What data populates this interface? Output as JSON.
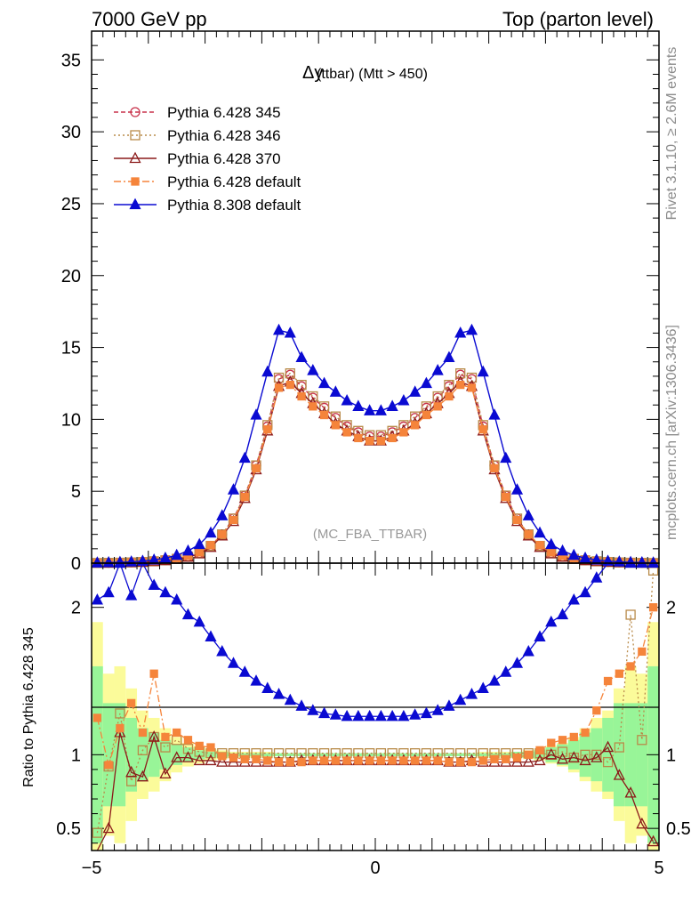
{
  "header": {
    "left": "7000 GeV pp",
    "right": "Top (parton level)"
  },
  "side": {
    "rivet": "Rivet 3.1.10, ≥ 2.6M events",
    "mcplots": "mcplots.cern.ch [arXiv:1306.3436]"
  },
  "colors": {
    "p345": "#c8324b",
    "p346": "#b98b4a",
    "p370": "#8b1a1a",
    "p6def": "#f5843b",
    "p8def": "#0a0ad2",
    "band_yellow": "#fbfb9a",
    "band_green": "#98f598"
  },
  "chart_data": [
    {
      "type": "line",
      "title": "Δy (ttbar) (Mtt > 450)",
      "title_main": "Δy",
      "title_sub": "(ttbar) (Mtt > 450)",
      "watermark": "(MC_FBA_TTBAR)",
      "xlim": [
        -5,
        5
      ],
      "ylim": [
        0,
        37
      ],
      "yticks": [
        0,
        5,
        10,
        15,
        20,
        25,
        30,
        35
      ],
      "xlabel": "",
      "ylabel": "",
      "legend_position": "top-left",
      "x": [
        -4.9,
        -4.7,
        -4.5,
        -4.3,
        -4.1,
        -3.9,
        -3.7,
        -3.5,
        -3.3,
        -3.1,
        -2.9,
        -2.7,
        -2.5,
        -2.3,
        -2.1,
        -1.9,
        -1.7,
        -1.5,
        -1.3,
        -1.1,
        -0.9,
        -0.7,
        -0.5,
        -0.3,
        -0.1,
        0.1,
        0.3,
        0.5,
        0.7,
        0.9,
        1.1,
        1.3,
        1.5,
        1.7,
        1.9,
        2.1,
        2.3,
        2.5,
        2.7,
        2.9,
        3.1,
        3.3,
        3.5,
        3.7,
        3.9,
        4.1,
        4.3,
        4.5,
        4.7,
        4.9
      ],
      "series": [
        {
          "name": "Pythia 6.428 345",
          "key": "p345",
          "marker": "circle-open",
          "dash": "5,3",
          "values": [
            0.01,
            0.02,
            0.03,
            0.05,
            0.08,
            0.13,
            0.2,
            0.3,
            0.45,
            0.7,
            1.2,
            2.0,
            3.1,
            4.7,
            6.8,
            9.5,
            12.8,
            13.1,
            12.3,
            11.5,
            10.8,
            10.1,
            9.5,
            9.1,
            8.8,
            8.8,
            9.1,
            9.5,
            10.1,
            10.8,
            11.5,
            12.3,
            13.1,
            12.8,
            9.5,
            6.8,
            4.7,
            3.1,
            2.0,
            1.2,
            0.7,
            0.45,
            0.3,
            0.2,
            0.13,
            0.08,
            0.05,
            0.03,
            0.02,
            0.01
          ]
        },
        {
          "name": "Pythia 6.428 346",
          "key": "p346",
          "marker": "square-open",
          "dash": "2,3",
          "values": [
            0.01,
            0.02,
            0.03,
            0.05,
            0.08,
            0.13,
            0.2,
            0.3,
            0.45,
            0.7,
            1.2,
            2.0,
            3.1,
            4.7,
            6.8,
            9.6,
            12.9,
            13.2,
            12.4,
            11.6,
            10.9,
            10.2,
            9.6,
            9.2,
            8.9,
            8.9,
            9.2,
            9.6,
            10.2,
            10.9,
            11.6,
            12.4,
            13.2,
            12.9,
            9.6,
            6.8,
            4.7,
            3.1,
            2.0,
            1.2,
            0.7,
            0.45,
            0.3,
            0.2,
            0.13,
            0.08,
            0.05,
            0.03,
            0.02,
            0.01
          ]
        },
        {
          "name": "Pythia 6.428 370",
          "key": "p370",
          "marker": "triangle-open",
          "dash": "",
          "values": [
            0.01,
            0.01,
            0.03,
            0.05,
            0.07,
            0.12,
            0.18,
            0.28,
            0.42,
            0.65,
            1.1,
            1.9,
            2.9,
            4.5,
            6.5,
            9.2,
            12.3,
            12.6,
            11.8,
            11.1,
            10.4,
            9.7,
            9.2,
            8.8,
            8.5,
            8.5,
            8.8,
            9.2,
            9.7,
            10.4,
            11.1,
            11.8,
            12.6,
            12.3,
            9.2,
            6.5,
            4.5,
            2.9,
            1.9,
            1.1,
            0.65,
            0.42,
            0.28,
            0.18,
            0.12,
            0.07,
            0.05,
            0.03,
            0.01,
            0.01
          ]
        },
        {
          "name": "Pythia 6.428 default",
          "key": "p6def",
          "marker": "square-filled",
          "dash": "8,3,2,3",
          "values": [
            0.01,
            0.02,
            0.04,
            0.06,
            0.1,
            0.15,
            0.23,
            0.34,
            0.5,
            0.75,
            1.25,
            2.0,
            3.0,
            4.6,
            6.6,
            9.3,
            12.2,
            12.4,
            11.6,
            10.9,
            10.3,
            9.6,
            9.1,
            8.7,
            8.5,
            8.5,
            8.7,
            9.1,
            9.6,
            10.3,
            10.9,
            11.6,
            12.4,
            12.2,
            9.3,
            6.6,
            4.6,
            3.0,
            2.0,
            1.25,
            0.75,
            0.5,
            0.34,
            0.23,
            0.15,
            0.1,
            0.06,
            0.04,
            0.02,
            0.01
          ]
        },
        {
          "name": "Pythia 8.308 default",
          "key": "p8def",
          "marker": "triangle-filled",
          "dash": "",
          "values": [
            0.02,
            0.04,
            0.06,
            0.09,
            0.14,
            0.22,
            0.35,
            0.55,
            0.85,
            1.3,
            2.1,
            3.3,
            5.1,
            7.3,
            10.3,
            13.3,
            16.2,
            16.0,
            14.3,
            13.4,
            12.5,
            11.9,
            11.3,
            10.9,
            10.6,
            10.6,
            10.9,
            11.3,
            11.9,
            12.5,
            13.4,
            14.3,
            16.0,
            16.2,
            13.3,
            10.3,
            7.3,
            5.1,
            3.3,
            2.1,
            1.3,
            0.85,
            0.55,
            0.35,
            0.22,
            0.14,
            0.09,
            0.06,
            0.04,
            0.02
          ]
        }
      ]
    },
    {
      "type": "line",
      "title": "",
      "xlim": [
        -5,
        5
      ],
      "xticks": [
        -5,
        0,
        5
      ],
      "ylim": [
        0.35,
        2.3
      ],
      "yticks": [
        0.5,
        1,
        2
      ],
      "ylabel": "Ratio to Pythia 6.428 345",
      "x": [
        -4.9,
        -4.7,
        -4.5,
        -4.3,
        -4.1,
        -3.9,
        -3.7,
        -3.5,
        -3.3,
        -3.1,
        -2.9,
        -2.7,
        -2.5,
        -2.3,
        -2.1,
        -1.9,
        -1.7,
        -1.5,
        -1.3,
        -1.1,
        -0.9,
        -0.7,
        -0.5,
        -0.3,
        -0.1,
        0.1,
        0.3,
        0.5,
        0.7,
        0.9,
        1.1,
        1.3,
        1.5,
        1.7,
        1.9,
        2.1,
        2.3,
        2.5,
        2.7,
        2.9,
        3.1,
        3.3,
        3.5,
        3.7,
        3.9,
        4.1,
        4.3,
        4.5,
        4.7,
        4.9
      ],
      "series": [
        {
          "name": "Pythia 6.428 346",
          "key": "p346",
          "marker": "square-open",
          "values": [
            0.47,
            0.92,
            1.28,
            0.82,
            1.03,
            1.12,
            1.05,
            1.1,
            1.04,
            1.02,
            1.01,
            1.01,
            1.01,
            1.01,
            1.01,
            1.01,
            1.01,
            1.01,
            1.01,
            1.01,
            1.01,
            1.01,
            1.01,
            1.01,
            1.01,
            1.01,
            1.01,
            1.01,
            1.01,
            1.01,
            1.01,
            1.01,
            1.01,
            1.01,
            1.01,
            1.01,
            1.01,
            1.01,
            1.01,
            1.01,
            1.0,
            1.02,
            0.98,
            1.0,
            1.0,
            0.95,
            1.05,
            1.95,
            1.1,
            2.25
          ]
        },
        {
          "name": "Pythia 6.428 370",
          "key": "p370",
          "marker": "triangle-open",
          "values": [
            0.33,
            0.5,
            1.15,
            0.88,
            0.85,
            1.12,
            0.87,
            0.98,
            0.98,
            0.96,
            0.96,
            0.95,
            0.95,
            0.95,
            0.95,
            0.95,
            0.95,
            0.95,
            0.96,
            0.96,
            0.96,
            0.96,
            0.96,
            0.96,
            0.96,
            0.96,
            0.96,
            0.96,
            0.96,
            0.96,
            0.96,
            0.95,
            0.95,
            0.96,
            0.95,
            0.95,
            0.95,
            0.95,
            0.95,
            0.96,
            1.0,
            0.97,
            0.98,
            0.96,
            0.98,
            1.05,
            0.86,
            0.74,
            0.53,
            0.41
          ]
        },
        {
          "name": "Pythia 6.428 default",
          "key": "p6def",
          "marker": "square-filled",
          "values": [
            1.25,
            0.93,
            1.18,
            1.35,
            1.15,
            1.55,
            1.12,
            1.15,
            1.1,
            1.06,
            1.05,
            0.99,
            0.98,
            0.97,
            0.97,
            0.96,
            0.95,
            0.95,
            0.95,
            0.96,
            0.96,
            0.96,
            0.96,
            0.96,
            0.96,
            0.96,
            0.96,
            0.96,
            0.96,
            0.96,
            0.96,
            0.95,
            0.95,
            0.95,
            0.96,
            0.97,
            0.97,
            0.98,
            1.0,
            1.03,
            1.08,
            1.1,
            1.12,
            1.15,
            1.3,
            1.5,
            1.55,
            1.6,
            1.7,
            2.0
          ]
        },
        {
          "name": "Pythia 8.308 default",
          "key": "p8def",
          "marker": "triangle-filled",
          "values": [
            2.05,
            2.1,
            2.3,
            2.08,
            2.35,
            2.15,
            2.1,
            2.05,
            1.95,
            1.9,
            1.8,
            1.7,
            1.62,
            1.56,
            1.5,
            1.45,
            1.41,
            1.37,
            1.33,
            1.3,
            1.28,
            1.27,
            1.26,
            1.26,
            1.26,
            1.26,
            1.26,
            1.26,
            1.27,
            1.28,
            1.3,
            1.33,
            1.37,
            1.41,
            1.45,
            1.5,
            1.56,
            1.62,
            1.7,
            1.8,
            1.9,
            1.95,
            2.05,
            2.1,
            2.2,
            2.4,
            2.4,
            2.3,
            2.3,
            2.3
          ]
        }
      ],
      "band_yellow_halfwidth": [
        0.9,
        0.55,
        0.6,
        0.45,
        0.3,
        0.25,
        0.18,
        0.12,
        0.08,
        0.06,
        0.04,
        0.03,
        0.02,
        0.02,
        0.02,
        0.02,
        0.01,
        0.01,
        0.01,
        0.01,
        0.01,
        0.01,
        0.01,
        0.01,
        0.01,
        0.01,
        0.01,
        0.01,
        0.01,
        0.01,
        0.01,
        0.01,
        0.01,
        0.01,
        0.02,
        0.02,
        0.02,
        0.02,
        0.03,
        0.04,
        0.06,
        0.08,
        0.12,
        0.18,
        0.25,
        0.3,
        0.45,
        0.6,
        0.55,
        0.9
      ],
      "band_green_halfwidth": [
        0.6,
        0.35,
        0.35,
        0.25,
        0.18,
        0.15,
        0.1,
        0.07,
        0.05,
        0.03,
        0.02,
        0.02,
        0.01,
        0.01,
        0.01,
        0.01,
        0.01,
        0.01,
        0.01,
        0.01,
        0.01,
        0.01,
        0.01,
        0.01,
        0.01,
        0.01,
        0.01,
        0.01,
        0.01,
        0.01,
        0.01,
        0.01,
        0.01,
        0.01,
        0.01,
        0.01,
        0.01,
        0.02,
        0.02,
        0.03,
        0.05,
        0.07,
        0.1,
        0.15,
        0.18,
        0.25,
        0.35,
        0.35,
        0.35,
        0.6
      ]
    }
  ]
}
